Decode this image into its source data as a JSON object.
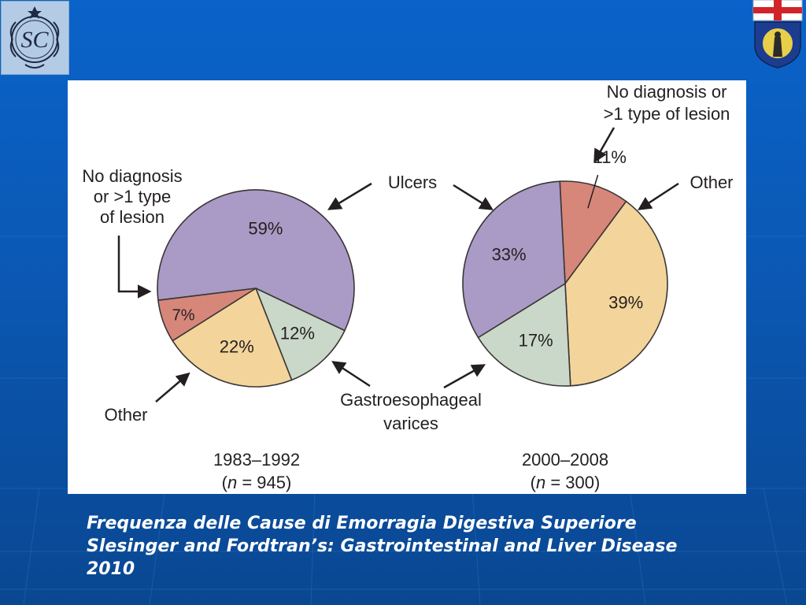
{
  "chart_data": [
    {
      "type": "pie",
      "title": "1983–1992",
      "subtitle_prefix": "(",
      "subtitle_n": "n",
      "subtitle_rest": " = 945)",
      "slices": [
        {
          "label": "Ulcers",
          "value": 59,
          "text": "59%",
          "color": "#a99bc5"
        },
        {
          "label": "Gastroesophageal varices",
          "value": 12,
          "text": "12%",
          "color": "#c9d8c8"
        },
        {
          "label": "Other",
          "value": 22,
          "text": "22%",
          "color": "#f3d59b"
        },
        {
          "label": "No diagnosis or >1 type of lesion",
          "value": 7,
          "text": "7%",
          "color": "#d6877a"
        }
      ]
    },
    {
      "type": "pie",
      "title": "2000–2008",
      "subtitle_prefix": "(",
      "subtitle_n": "n",
      "subtitle_rest": " = 300)",
      "slices": [
        {
          "label": "No diagnosis or >1 type of lesion",
          "value": 11,
          "text": "11%",
          "color": "#d6877a"
        },
        {
          "label": "Other",
          "value": 39,
          "text": "39%",
          "color": "#f3d59b"
        },
        {
          "label": "Gastroesophageal varices",
          "value": 17,
          "text": "17%",
          "color": "#c9d8c8"
        },
        {
          "label": "Ulcers",
          "value": 33,
          "text": "33%",
          "color": "#a99bc5"
        }
      ]
    }
  ],
  "annotations": {
    "left_nodiag": [
      "No diagnosis",
      "or >1 type",
      "of lesion"
    ],
    "ulcers": "Ulcers",
    "other_left": "Other",
    "varices": [
      "Gastroesophageal",
      "varices"
    ],
    "right_nodiag": [
      "No diagnosis or",
      ">1 type of lesion"
    ],
    "other_right": "Other"
  },
  "caption": {
    "line1": "Frequenza delle Cause di Emorragia Digestiva Superiore",
    "line2": "Slesinger and Fordtran’s: Gastrointestinal and Liver Disease",
    "line3": "2010"
  },
  "logos": {
    "left_monogram": "SC"
  },
  "colors": {
    "background": "#0b58b4",
    "outline": "#3b3536",
    "caption_text": "#ffffff"
  }
}
